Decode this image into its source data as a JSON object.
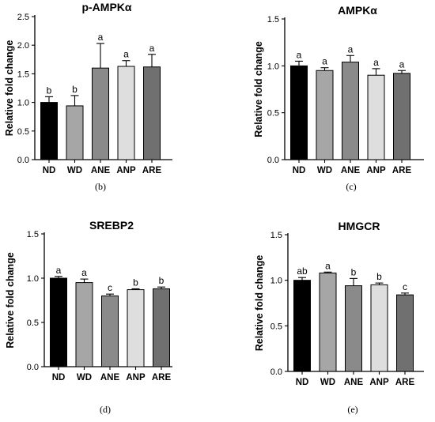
{
  "colors": [
    "#000000",
    "#a6a6a6",
    "#8a8a8a",
    "#dedede",
    "#707070"
  ],
  "chart_data": [
    {
      "type": "bar",
      "title": "p-AMPKα",
      "panel_label": "(b)",
      "ylabel": "Relative fold change",
      "xlabel": "",
      "ylim": [
        0,
        2.5
      ],
      "yticks": [
        "0.0",
        "0.5",
        "1.0",
        "1.5",
        "2.0",
        "2.5"
      ],
      "categories": [
        "ND",
        "WD",
        "ANE",
        "ANP",
        "ARE"
      ],
      "values": [
        1.0,
        0.94,
        1.6,
        1.63,
        1.62
      ],
      "errors": [
        0.1,
        0.18,
        0.43,
        0.1,
        0.22
      ],
      "significance": [
        "b",
        "b",
        "a",
        "a",
        "a"
      ],
      "grid": false
    },
    {
      "type": "bar",
      "title": "AMPKα",
      "panel_label": "(c)",
      "ylabel": "Relative fold change",
      "xlabel": "",
      "ylim": [
        0,
        1.5
      ],
      "yticks": [
        "0.0",
        "0.5",
        "1.0",
        "1.5"
      ],
      "categories": [
        "ND",
        "WD",
        "ANE",
        "ANP",
        "ARE"
      ],
      "values": [
        1.0,
        0.95,
        1.04,
        0.9,
        0.92
      ],
      "errors": [
        0.05,
        0.03,
        0.07,
        0.07,
        0.03
      ],
      "significance": [
        "a",
        "a",
        "a",
        "a",
        "a"
      ],
      "grid": false
    },
    {
      "type": "bar",
      "title": "SREBP2",
      "panel_label": "(d)",
      "ylabel": "Relative fold change",
      "xlabel": "",
      "ylim": [
        0,
        1.5
      ],
      "yticks": [
        "0.0",
        "0.5",
        "1.0",
        "1.5"
      ],
      "categories": [
        "ND",
        "WD",
        "ANE",
        "ANP",
        "ARE"
      ],
      "values": [
        1.0,
        0.95,
        0.8,
        0.87,
        0.88
      ],
      "errors": [
        0.02,
        0.04,
        0.02,
        0.01,
        0.02
      ],
      "significance": [
        "a",
        "a",
        "c",
        "b",
        "b"
      ],
      "grid": false
    },
    {
      "type": "bar",
      "title": "HMGCR",
      "panel_label": "(e)",
      "ylabel": "Relative fold change",
      "xlabel": "",
      "ylim": [
        0,
        1.5
      ],
      "yticks": [
        "0.0",
        "0.5",
        "1.0",
        "1.5"
      ],
      "categories": [
        "ND",
        "WD",
        "ANE",
        "ANP",
        "ARE"
      ],
      "values": [
        1.0,
        1.08,
        0.94,
        0.95,
        0.84
      ],
      "errors": [
        0.03,
        0.01,
        0.08,
        0.02,
        0.02
      ],
      "significance": [
        "ab",
        "a",
        "b",
        "b",
        "c"
      ],
      "grid": false
    }
  ]
}
